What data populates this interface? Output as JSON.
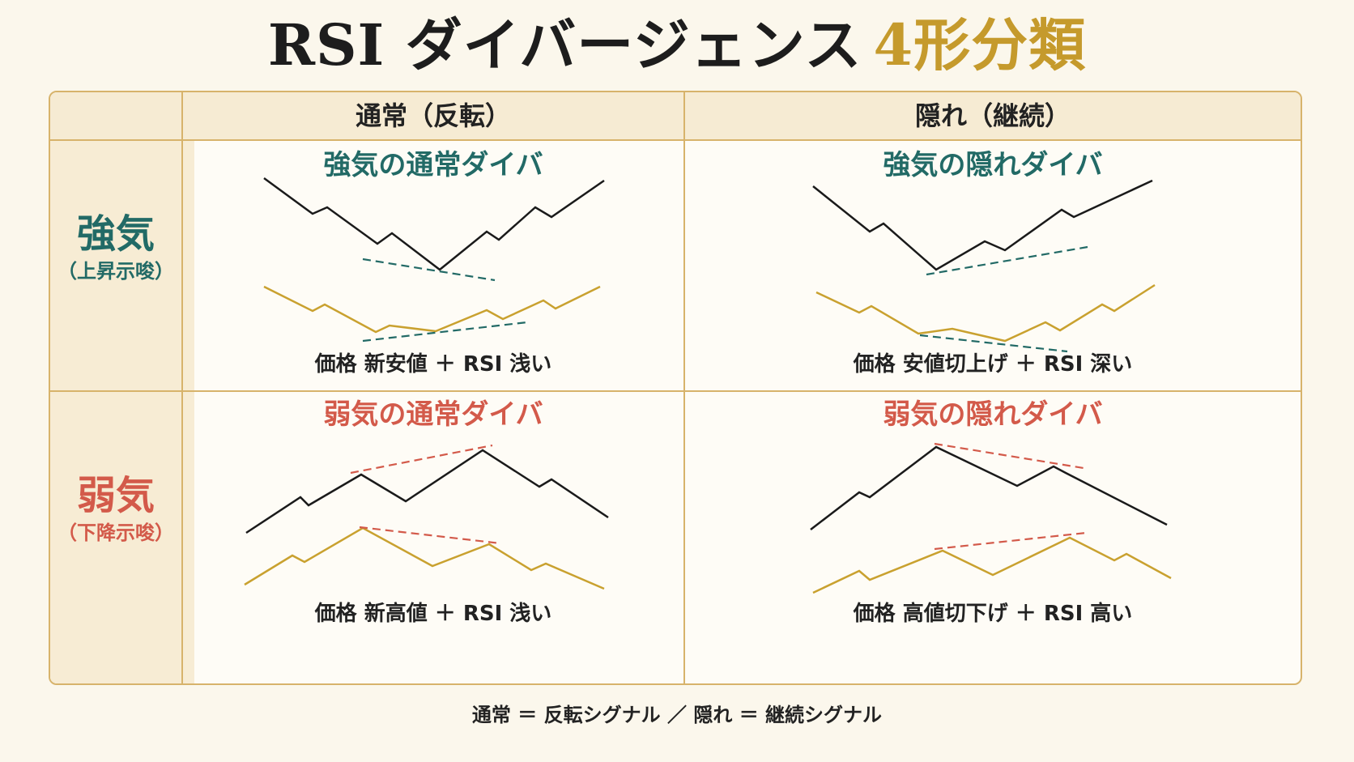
{
  "title": {
    "main": "RSI ダイバージェンス",
    "highlight": "4形分類"
  },
  "header": {
    "col_normal": "通常（反転）",
    "col_hidden": "隠れ（継続）"
  },
  "rows": {
    "bullish": {
      "label": "強気",
      "sub": "（上昇示唆）"
    },
    "bearish": {
      "label": "弱気",
      "sub": "（下降示唆）"
    }
  },
  "cells": {
    "bull_normal": {
      "title": "強気の通常ダイバ",
      "caption": "価格 新安値 ＋ RSI 浅い"
    },
    "bull_hidden": {
      "title": "強気の隠れダイバ",
      "caption": "価格 安値切上げ ＋ RSI 深い"
    },
    "bear_normal": {
      "title": "弱気の通常ダイバ",
      "caption": "価格 新高値 ＋ RSI 浅い"
    },
    "bear_hidden": {
      "title": "弱気の隠れダイバ",
      "caption": "価格 高値切下げ ＋ RSI 高い"
    }
  },
  "footer": "通常 ＝ 反転シグナル ／ 隠れ ＝ 継続シグナル",
  "colors": {
    "bullish": "#226a66",
    "bearish": "#d35a4a",
    "price_line": "#1a1a1a",
    "rsi_line": "#c9a12f",
    "border": "#d7b36b"
  }
}
